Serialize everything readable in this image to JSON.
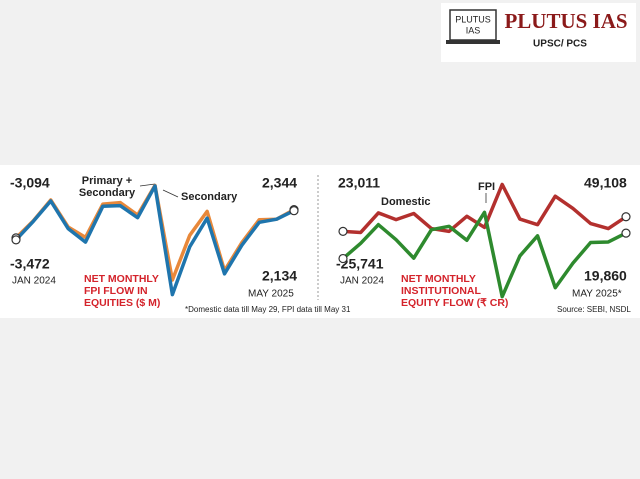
{
  "logo": {
    "icon_text": [
      "PLUTUS",
      "IAS"
    ],
    "name": "PLUTUS IAS",
    "tagline": "UPSC/ PCS"
  },
  "chart_data": [
    {
      "type": "line",
      "title": "NET MONTHLY FPI FLOW IN EQUITIES ($ M)",
      "note": "*Domestic data till May 29, FPI data till May 31",
      "categories": [
        "JAN 2024",
        null,
        null,
        null,
        null,
        null,
        null,
        null,
        null,
        null,
        null,
        null,
        null,
        null,
        null,
        null,
        "MAY 2025"
      ],
      "ylim": [
        -16000,
        9000
      ],
      "series": [
        {
          "name": "Primary + Secondary",
          "color": "#e8883a",
          "values": [
            -3094,
            200,
            4200,
            -1000,
            -3000,
            3400,
            3700,
            1300,
            7000,
            -11200,
            -2600,
            2000,
            -9400,
            -4000,
            400,
            500,
            2344
          ],
          "value_labels": [
            "-3,094",
            null,
            null,
            null,
            null,
            null,
            null,
            null,
            null,
            null,
            null,
            null,
            null,
            null,
            null,
            null,
            "2,344"
          ]
        },
        {
          "name": "Secondary",
          "color": "#1f75ad",
          "values": [
            -3472,
            100,
            4000,
            -1300,
            -3900,
            3000,
            3100,
            800,
            6900,
            -14000,
            -4800,
            700,
            -10000,
            -4500,
            -100,
            500,
            2134
          ],
          "value_labels": [
            "-3,472",
            null,
            null,
            null,
            null,
            null,
            null,
            null,
            null,
            null,
            null,
            null,
            null,
            null,
            null,
            null,
            "2,134"
          ]
        }
      ]
    },
    {
      "type": "line",
      "title": "NET MONTHLY INSTITUTIONAL EQUITY FLOW (₹ CR)",
      "source": "Source: SEBI, NSDL",
      "categories": [
        "JAN 2024",
        null,
        null,
        null,
        null,
        null,
        null,
        null,
        null,
        null,
        null,
        null,
        null,
        null,
        null,
        null,
        "MAY 2025*"
      ],
      "ylim": [
        -100000,
        115000
      ],
      "series": [
        {
          "name": "Domestic",
          "color": "#b3302e",
          "values": [
            23011,
            21000,
            56000,
            44000,
            55000,
            28000,
            23000,
            50000,
            30000,
            107000,
            45000,
            35000,
            86000,
            64000,
            37000,
            28000,
            49108
          ],
          "value_labels": [
            "23,011",
            null,
            null,
            null,
            null,
            null,
            null,
            null,
            null,
            null,
            null,
            null,
            null,
            null,
            null,
            null,
            "49,108"
          ]
        },
        {
          "name": "FPI",
          "color": "#2e8a2e",
          "values": [
            -25741,
            1500,
            35000,
            8000,
            -25000,
            26000,
            32000,
            7000,
            57000,
            -94000,
            -21000,
            15000,
            -78000,
            -34000,
            3000,
            4000,
            19860
          ],
          "value_labels": [
            "-25,741",
            null,
            null,
            null,
            null,
            null,
            null,
            null,
            null,
            null,
            null,
            null,
            null,
            null,
            null,
            null,
            "19,860"
          ]
        }
      ]
    }
  ]
}
